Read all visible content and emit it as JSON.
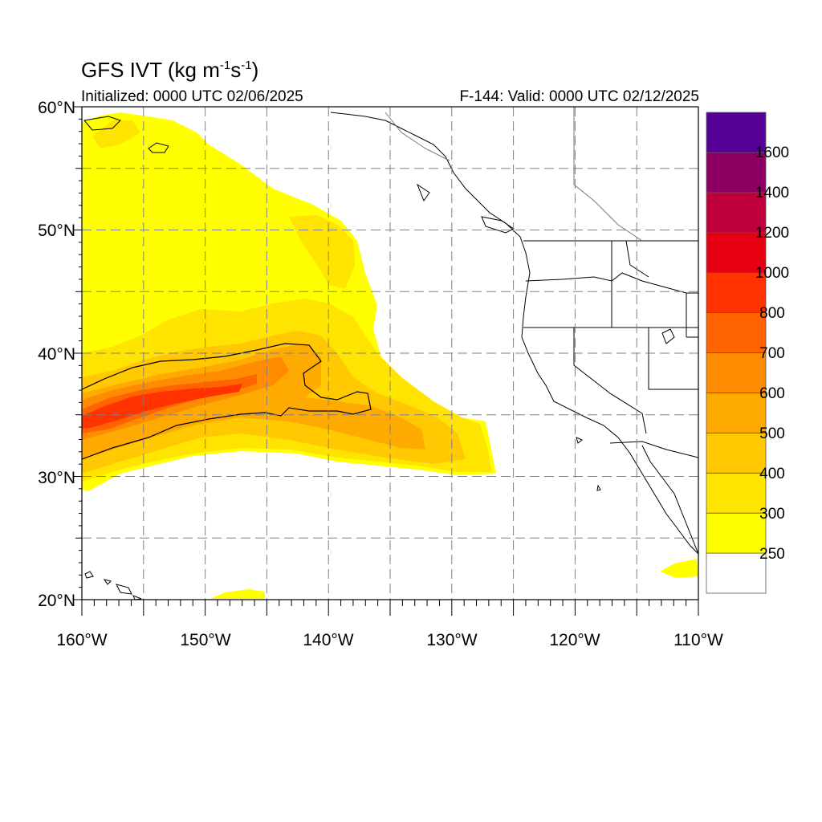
{
  "header": {
    "title": "GFS IVT (kg m",
    "title_exp1": "-1",
    "title_mid": "s",
    "title_exp2": "-1",
    "title_end": ")",
    "initialized": "Initialized: 0000 UTC 02/06/2025",
    "valid": "F-144: Valid: 0000 UTC 02/12/2025"
  },
  "map": {
    "lon_range": [
      -160,
      -110
    ],
    "lat_range": [
      20,
      60
    ],
    "lon_ticks": [
      -160,
      -150,
      -140,
      -130,
      -120,
      -110
    ],
    "lat_ticks": [
      20,
      30,
      40,
      50,
      60
    ],
    "lon_tick_labels": [
      "160°W",
      "150°W",
      "140°W",
      "130°W",
      "120°W",
      "110°W"
    ],
    "lat_tick_labels": [
      "20°N",
      "30°N",
      "40°N",
      "50°N",
      "60°N"
    ],
    "grid": true
  },
  "colorbar": {
    "labels": [
      "250",
      "300",
      "400",
      "500",
      "600",
      "700",
      "800",
      "1000",
      "1200",
      "1400",
      "1600"
    ],
    "colors": [
      "#ffffff",
      "#ffff00",
      "#ffe400",
      "#ffc800",
      "#ffaa00",
      "#ff8c00",
      "#ff6400",
      "#ff3200",
      "#e60012",
      "#c0003c",
      "#8c0064",
      "#550096"
    ]
  }
}
